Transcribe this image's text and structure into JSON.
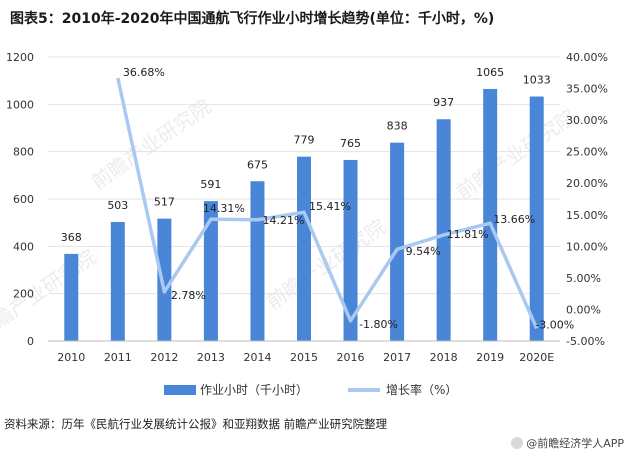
{
  "title": "图表5：2010年-2020年中国通航飞行作业小时增长趋势(单位：千小时，%)",
  "source": "资料来源：历年《民航行业发展统计公报》和亚翔数据 前瞻产业研究院整理",
  "brand": "@前瞻经济学人APP",
  "watermark": "前瞻产业研究院",
  "colors": {
    "bar": "#4a86d8",
    "line": "#aac9f0"
  },
  "chart_data": {
    "type": "bar+line",
    "categories": [
      "2010",
      "2011",
      "2012",
      "2013",
      "2014",
      "2015",
      "2016",
      "2017",
      "2018",
      "2019",
      "2020E"
    ],
    "series": [
      {
        "name": "作业小时（千小时）",
        "type": "bar",
        "axis": "left",
        "values": [
          368,
          503,
          517,
          591,
          675,
          779,
          765,
          838,
          937,
          1065,
          1033
        ],
        "labels": [
          "368",
          "503",
          "517",
          "591",
          "675",
          "779",
          "765",
          "838",
          "937",
          "1065",
          "1033"
        ]
      },
      {
        "name": "增长率（%）",
        "type": "line",
        "axis": "right",
        "values": [
          null,
          36.68,
          2.78,
          14.31,
          14.21,
          15.41,
          -1.8,
          9.54,
          11.81,
          13.66,
          -3.0
        ],
        "labels": [
          "",
          "36.68%",
          "2.78%",
          "14.31%",
          "14.21%",
          "15.41%",
          "-1.80%",
          "9.54%",
          "11.81%",
          "13.66%",
          "-3.00%"
        ]
      }
    ],
    "left_axis": {
      "min": 0,
      "max": 1200,
      "step": 200,
      "ticks": [
        "0",
        "200",
        "400",
        "600",
        "800",
        "1000",
        "1200"
      ]
    },
    "right_axis": {
      "min": -5,
      "max": 40,
      "step": 5,
      "ticks": [
        "-5.00%",
        "0.00%",
        "5.00%",
        "10.00%",
        "15.00%",
        "20.00%",
        "25.00%",
        "30.00%",
        "35.00%",
        "40.00%"
      ]
    },
    "legend": [
      "作业小时（千小时）",
      "增长率（%）"
    ],
    "legend_position": "bottom"
  }
}
